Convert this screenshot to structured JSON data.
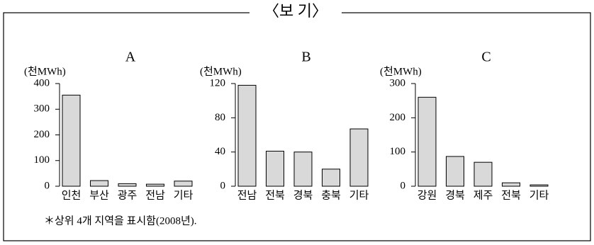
{
  "header": "〈보 기〉",
  "footnote": "＊상위 4개 지역을 표시함(2008년).",
  "chart_data": [
    {
      "type": "bar",
      "title": "A",
      "y_label": "(천MWh)",
      "color": "#d9d9d9",
      "categories": [
        "인천",
        "부산",
        "광주",
        "전남",
        "기타"
      ],
      "values": [
        355,
        22,
        10,
        8,
        20
      ],
      "ylim": [
        0,
        400
      ],
      "yticks": [
        0,
        100,
        200,
        300,
        400
      ]
    },
    {
      "type": "bar",
      "title": "B",
      "y_label": "(천MWh)",
      "color": "#d9d9d9",
      "categories": [
        "전남",
        "전북",
        "경북",
        "충북",
        "기타"
      ],
      "values": [
        118,
        41,
        40,
        20,
        67
      ],
      "ylim": [
        0,
        120
      ],
      "yticks": [
        0,
        40,
        80,
        120
      ]
    },
    {
      "type": "bar",
      "title": "C",
      "y_label": "(천MWh)",
      "color": "#d9d9d9",
      "categories": [
        "강원",
        "경북",
        "제주",
        "전북",
        "기타"
      ],
      "values": [
        260,
        87,
        70,
        10,
        4
      ],
      "ylim": [
        0,
        300
      ],
      "yticks": [
        0,
        100,
        200,
        300
      ]
    }
  ]
}
